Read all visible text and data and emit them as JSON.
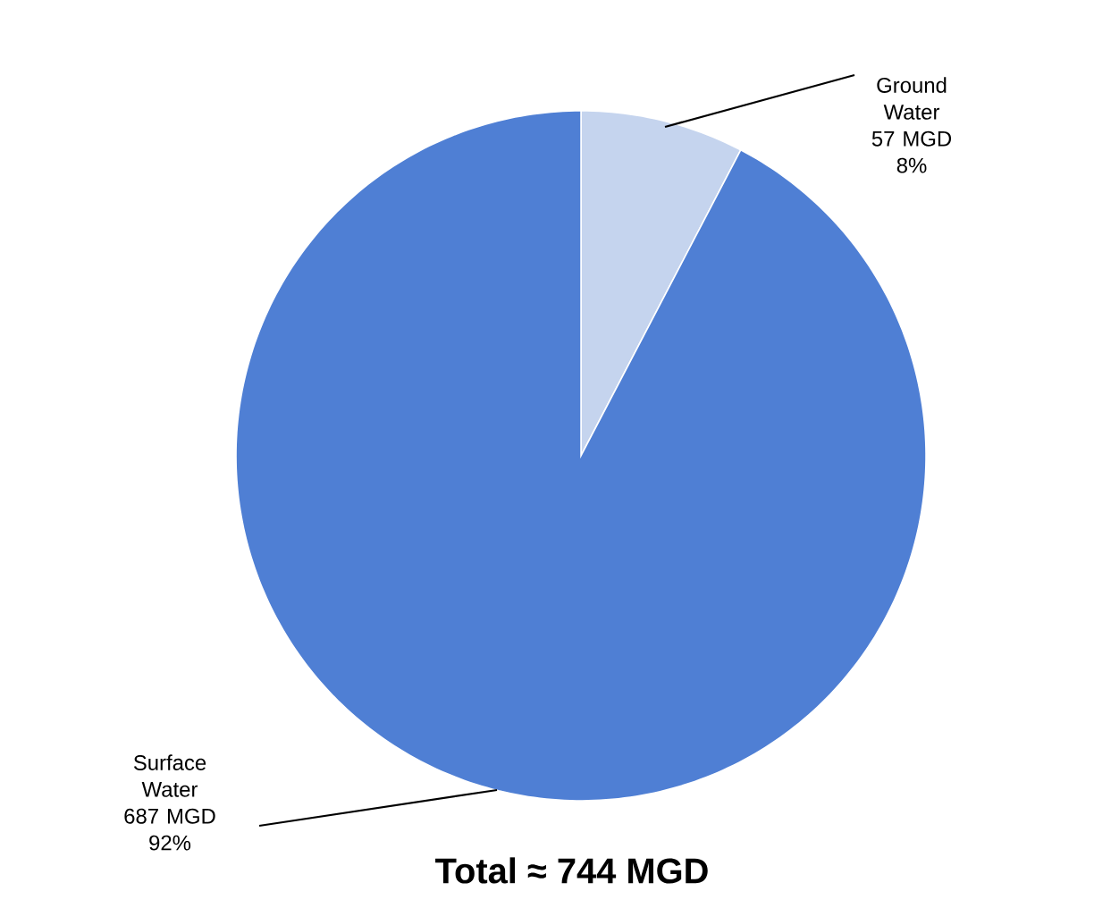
{
  "chart_data": {
    "type": "pie",
    "categories": [
      "Ground Water",
      "Surface Water"
    ],
    "values": [
      57,
      687
    ],
    "colors": [
      "#c5d4ee",
      "#4f7fd4"
    ],
    "value_labels": [
      "57 MGD",
      "687 MGD"
    ],
    "annotations": [
      "8%",
      "92%",
      "Total ≈ 744 MGD"
    ]
  }
}
